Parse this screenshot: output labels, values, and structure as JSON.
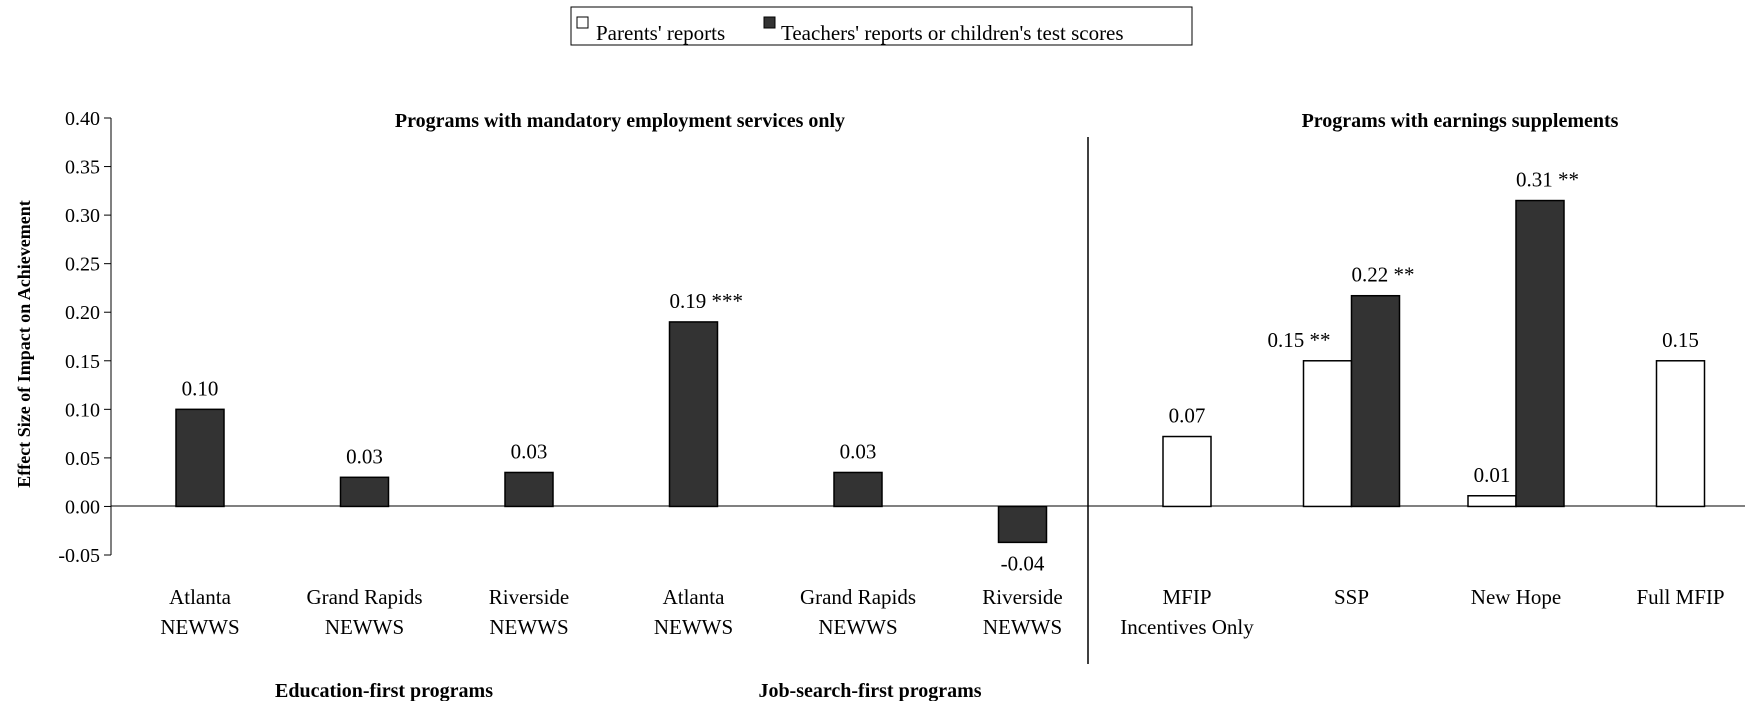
{
  "chart_data": {
    "type": "bar",
    "ylabel": "Effect Size of Impact on Achievement",
    "ylim": [
      -0.05,
      0.4
    ],
    "yticks": [
      "0.40",
      "0.35",
      "0.30",
      "0.25",
      "0.20",
      "0.15",
      "0.10",
      "0.05",
      "0.00",
      "-0.05"
    ],
    "legend": {
      "placement": "top-center",
      "items": [
        "Parents' reports",
        "Teachers' reports or children's test scores"
      ]
    },
    "series": [
      {
        "name": "Parents' reports",
        "color": "#ffffff"
      },
      {
        "name": "Teachers' reports or children's test scores",
        "color": "#333333"
      }
    ],
    "group_titles": {
      "mandatory": "Programs with mandatory employment services only",
      "supplements": "Programs with earnings supplements",
      "education_first": "Education-first programs",
      "job_search_first": "Job-search-first programs"
    },
    "categories": [
      {
        "line1": "Atlanta",
        "line2": "NEWWS",
        "bars": [
          {
            "series": 1,
            "value": 0.1,
            "label": "0.10"
          }
        ]
      },
      {
        "line1": "Grand Rapids",
        "line2": "NEWWS",
        "bars": [
          {
            "series": 1,
            "value": 0.03,
            "label": "0.03"
          }
        ]
      },
      {
        "line1": "Riverside",
        "line2": "NEWWS",
        "bars": [
          {
            "series": 1,
            "value": 0.035,
            "label": "0.03"
          }
        ]
      },
      {
        "line1": "Atlanta",
        "line2": "NEWWS",
        "bars": [
          {
            "series": 1,
            "value": 0.19,
            "label": "0.19 ***"
          }
        ]
      },
      {
        "line1": "Grand Rapids",
        "line2": "NEWWS",
        "bars": [
          {
            "series": 1,
            "value": 0.035,
            "label": "0.03"
          }
        ]
      },
      {
        "line1": "Riverside",
        "line2": "NEWWS",
        "bars": [
          {
            "series": 1,
            "value": -0.037,
            "label": "-0.04"
          }
        ]
      },
      {
        "line1": "MFIP",
        "line2": "Incentives Only",
        "bars": [
          {
            "series": 0,
            "value": 0.072,
            "label": "0.07"
          }
        ]
      },
      {
        "line1": "SSP",
        "line2": "",
        "bars": [
          {
            "series": 0,
            "value": 0.15,
            "label": "0.15 **"
          },
          {
            "series": 1,
            "value": 0.217,
            "label": "0.22 **"
          }
        ]
      },
      {
        "line1": "New Hope",
        "line2": "",
        "bars": [
          {
            "series": 0,
            "value": 0.011,
            "label": "0.01"
          },
          {
            "series": 1,
            "value": 0.315,
            "label": "0.31 **"
          }
        ]
      },
      {
        "line1": "Full MFIP",
        "line2": "",
        "bars": [
          {
            "series": 0,
            "value": 0.15,
            "label": "0.15"
          }
        ]
      }
    ],
    "grid": false
  }
}
